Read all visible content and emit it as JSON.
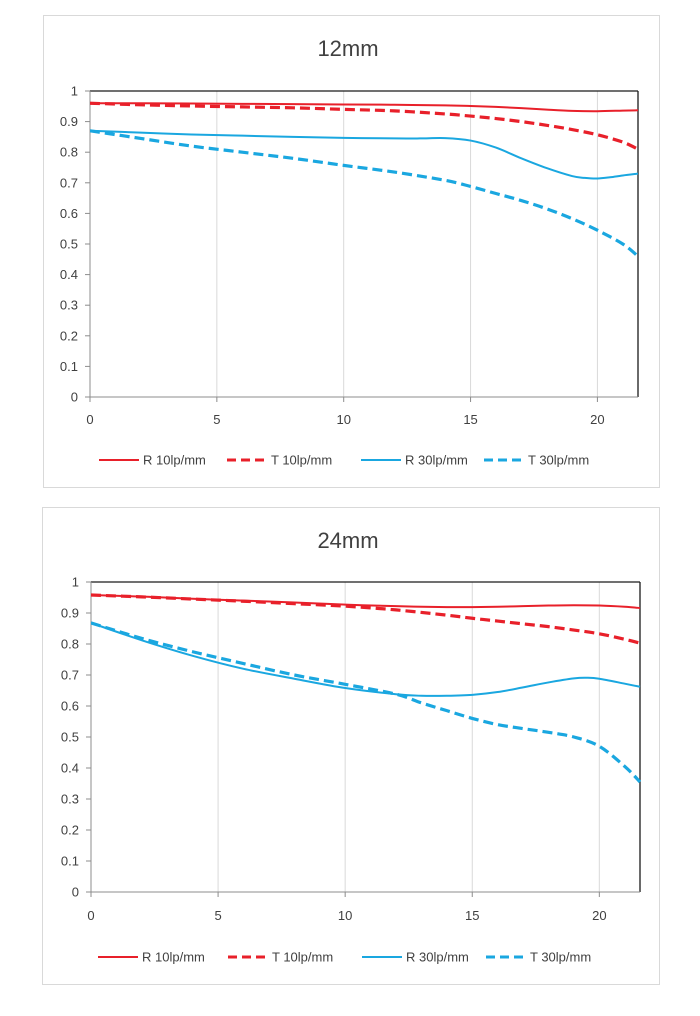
{
  "chart_data": [
    {
      "type": "line",
      "title": "12mm",
      "xlabel": "",
      "ylabel": "",
      "xlim": [
        0,
        21.6
      ],
      "ylim": [
        0,
        1
      ],
      "xticks": [
        0,
        5,
        10,
        15,
        20
      ],
      "yticks": [
        0,
        0.1,
        0.2,
        0.3,
        0.4,
        0.5,
        0.6,
        0.7,
        0.8,
        0.9,
        1
      ],
      "grid": "vertical",
      "legend": "bottom",
      "series": [
        {
          "name": "R 10lp/mm",
          "color": "#e8202a",
          "dashed": false,
          "x": [
            0,
            2,
            4,
            6,
            8,
            10,
            12,
            14,
            15,
            16,
            17,
            18,
            19,
            20,
            21,
            21.6
          ],
          "y": [
            0.96,
            0.96,
            0.959,
            0.958,
            0.957,
            0.956,
            0.955,
            0.953,
            0.951,
            0.948,
            0.944,
            0.939,
            0.935,
            0.934,
            0.936,
            0.937
          ]
        },
        {
          "name": "T 10lp/mm",
          "color": "#e8202a",
          "dashed": true,
          "x": [
            0,
            2,
            4,
            6,
            8,
            10,
            12,
            14,
            15,
            16,
            17,
            18,
            19,
            20,
            21,
            21.6
          ],
          "y": [
            0.96,
            0.955,
            0.951,
            0.948,
            0.945,
            0.94,
            0.935,
            0.925,
            0.918,
            0.91,
            0.9,
            0.888,
            0.874,
            0.857,
            0.833,
            0.81
          ]
        },
        {
          "name": "R 30lp/mm",
          "color": "#1aa7e0",
          "dashed": false,
          "x": [
            0,
            2,
            4,
            6,
            8,
            10,
            12,
            13,
            14,
            15,
            16,
            17,
            18,
            19,
            19.5,
            20,
            20.5,
            21,
            21.6
          ],
          "y": [
            0.87,
            0.864,
            0.858,
            0.854,
            0.85,
            0.847,
            0.845,
            0.845,
            0.846,
            0.838,
            0.815,
            0.78,
            0.748,
            0.722,
            0.716,
            0.714,
            0.718,
            0.724,
            0.73
          ]
        },
        {
          "name": "T 30lp/mm",
          "color": "#1aa7e0",
          "dashed": true,
          "x": [
            0,
            2,
            4,
            6,
            8,
            10,
            12,
            14,
            15,
            16,
            17,
            18,
            19,
            20,
            21,
            21.6
          ],
          "y": [
            0.87,
            0.845,
            0.82,
            0.8,
            0.78,
            0.757,
            0.735,
            0.708,
            0.688,
            0.665,
            0.642,
            0.615,
            0.583,
            0.545,
            0.5,
            0.46
          ]
        }
      ]
    },
    {
      "type": "line",
      "title": "24mm",
      "xlabel": "",
      "ylabel": "",
      "xlim": [
        0,
        21.6
      ],
      "ylim": [
        0,
        1
      ],
      "xticks": [
        0,
        5,
        10,
        15,
        20
      ],
      "yticks": [
        0,
        0.1,
        0.2,
        0.3,
        0.4,
        0.5,
        0.6,
        0.7,
        0.8,
        0.9,
        1
      ],
      "grid": "vertical",
      "legend": "bottom",
      "series": [
        {
          "name": "R 10lp/mm",
          "color": "#e8202a",
          "dashed": false,
          "x": [
            0,
            2,
            4,
            6,
            8,
            10,
            12,
            14,
            15,
            16,
            17,
            18,
            19,
            20,
            21,
            21.6
          ],
          "y": [
            0.958,
            0.953,
            0.946,
            0.94,
            0.934,
            0.927,
            0.922,
            0.919,
            0.919,
            0.92,
            0.922,
            0.924,
            0.925,
            0.924,
            0.92,
            0.916
          ]
        },
        {
          "name": "T 10lp/mm",
          "color": "#e8202a",
          "dashed": true,
          "x": [
            0,
            2,
            4,
            6,
            8,
            10,
            12,
            14,
            15,
            16,
            17,
            18,
            19,
            20,
            21,
            21.6
          ],
          "y": [
            0.958,
            0.952,
            0.945,
            0.938,
            0.93,
            0.922,
            0.91,
            0.893,
            0.883,
            0.874,
            0.865,
            0.856,
            0.845,
            0.833,
            0.815,
            0.803
          ]
        },
        {
          "name": "R 30lp/mm",
          "color": "#1aa7e0",
          "dashed": false,
          "x": [
            0,
            2,
            4,
            6,
            8,
            10,
            12,
            13,
            14,
            15,
            16,
            17,
            18,
            19,
            19.5,
            20,
            21,
            21.6
          ],
          "y": [
            0.868,
            0.812,
            0.762,
            0.72,
            0.688,
            0.658,
            0.638,
            0.633,
            0.633,
            0.636,
            0.645,
            0.66,
            0.676,
            0.689,
            0.691,
            0.688,
            0.672,
            0.662
          ]
        },
        {
          "name": "T 30lp/mm",
          "color": "#1aa7e0",
          "dashed": true,
          "x": [
            0,
            2,
            4,
            6,
            8,
            10,
            12,
            13,
            14,
            15,
            16,
            17,
            18,
            19,
            20,
            21,
            21.6
          ],
          "y": [
            0.868,
            0.818,
            0.775,
            0.737,
            0.7,
            0.67,
            0.638,
            0.61,
            0.585,
            0.56,
            0.54,
            0.527,
            0.515,
            0.5,
            0.47,
            0.405,
            0.355
          ]
        }
      ]
    }
  ]
}
